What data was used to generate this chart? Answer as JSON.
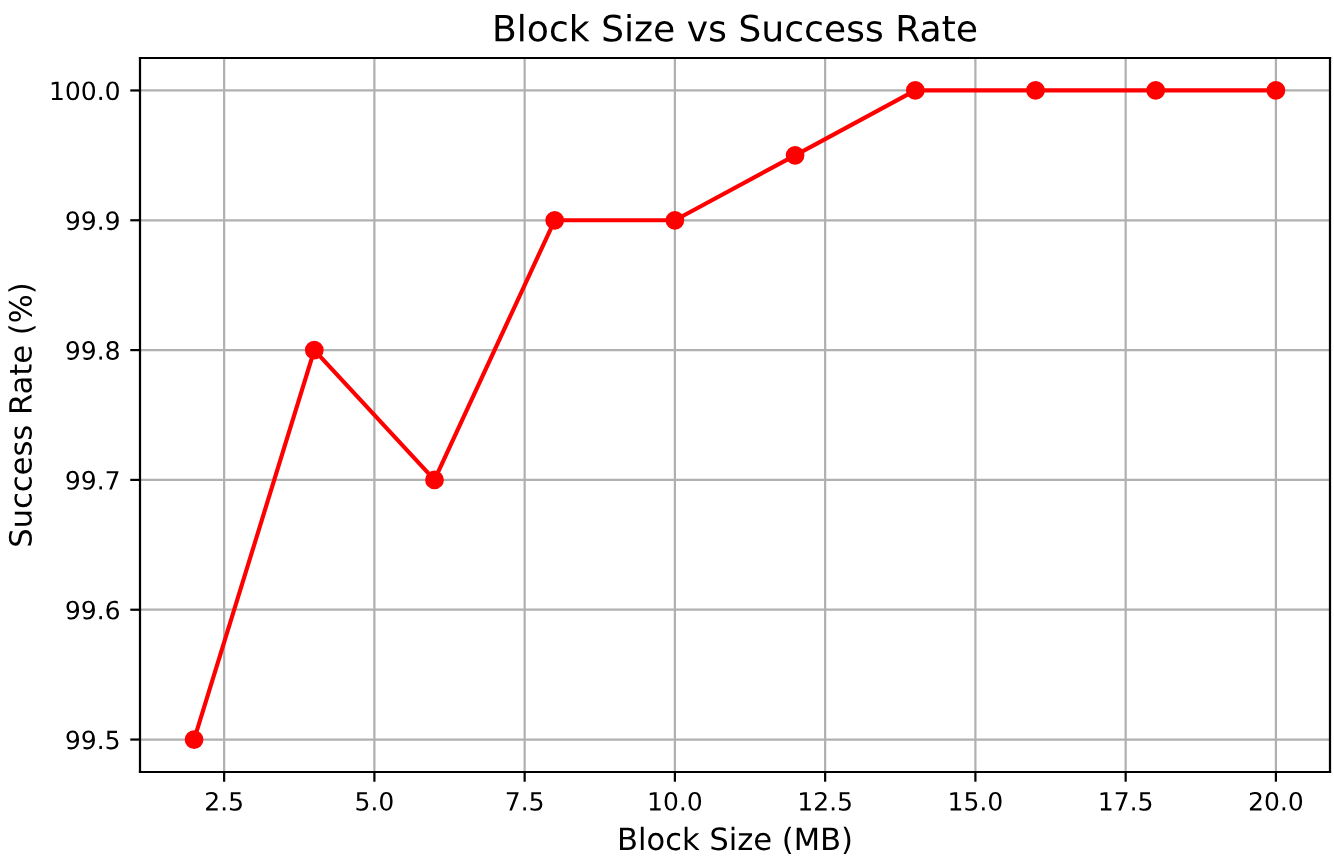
{
  "chart_data": {
    "type": "line",
    "title": "Block Size vs Success Rate",
    "xlabel": "Block Size (MB)",
    "ylabel": "Success Rate (%)",
    "x": [
      2,
      4,
      6,
      8,
      10,
      12,
      14,
      16,
      18,
      20
    ],
    "series": [
      {
        "color": "#ff0000",
        "values": [
          99.5,
          99.8,
          99.7,
          99.9,
          99.9,
          99.95,
          100.0,
          100.0,
          100.0,
          100.0
        ]
      }
    ],
    "xlim": [
      1.1,
      20.9
    ],
    "ylim": [
      99.475,
      100.025
    ],
    "xticks": [
      {
        "value": 2.5,
        "label": "2.5"
      },
      {
        "value": 5,
        "label": "5.0"
      },
      {
        "value": 7.5,
        "label": "7.5"
      },
      {
        "value": 10,
        "label": "10.0"
      },
      {
        "value": 12.5,
        "label": "12.5"
      },
      {
        "value": 15,
        "label": "15.0"
      },
      {
        "value": 17.5,
        "label": "17.5"
      },
      {
        "value": 20,
        "label": "20.0"
      }
    ],
    "yticks": [
      {
        "value": 99.5,
        "label": "99.5"
      },
      {
        "value": 99.6,
        "label": "99.6"
      },
      {
        "value": 99.7,
        "label": "99.7"
      },
      {
        "value": 99.8,
        "label": "99.8"
      },
      {
        "value": 99.9,
        "label": "99.9"
      },
      {
        "value": 100,
        "label": "100.0"
      }
    ],
    "grid": true,
    "marker": "circle",
    "line_style": "solid"
  }
}
